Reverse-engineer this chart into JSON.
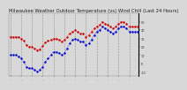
{
  "title": "Milwaukee Weather Outdoor Temperature (vs) Wind Chill (Last 24 Hours)",
  "title_fontsize": 3.8,
  "title_color": "#222222",
  "bg_color": "#d8d8d8",
  "plot_bg_color": "#d8d8d8",
  "grid_color": "#888888",
  "temp_color": "#cc0000",
  "windchill_color": "#0000cc",
  "ylim": [
    -15,
    60
  ],
  "ytick_values": [
    50,
    40,
    30,
    20,
    10,
    0,
    -10
  ],
  "temp_values": [
    32,
    32,
    32,
    32,
    30,
    27,
    22,
    20,
    20,
    18,
    16,
    17,
    21,
    25,
    27,
    28,
    30,
    30,
    28,
    26,
    28,
    32,
    36,
    38,
    40,
    38,
    36,
    36,
    32,
    34,
    38,
    42,
    44,
    46,
    50,
    48,
    46,
    44,
    42,
    44,
    48,
    50,
    50,
    48,
    44,
    44,
    44,
    44
  ],
  "wc_values": [
    10,
    10,
    10,
    8,
    6,
    2,
    -4,
    -6,
    -6,
    -8,
    -10,
    -8,
    -4,
    2,
    6,
    10,
    14,
    14,
    12,
    10,
    12,
    18,
    24,
    28,
    30,
    28,
    26,
    26,
    22,
    24,
    28,
    34,
    38,
    40,
    44,
    42,
    40,
    38,
    36,
    38,
    42,
    44,
    44,
    42,
    38,
    38,
    38,
    38
  ],
  "n_points": 48,
  "tick_interval": 4
}
